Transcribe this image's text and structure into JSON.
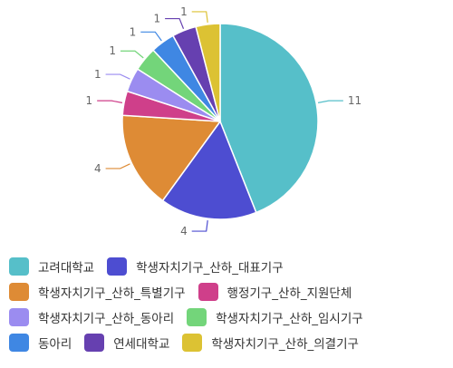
{
  "chart_data": {
    "type": "pie",
    "title": "",
    "categories": [
      "고려대학교",
      "학생자치기구_산하_대표기구",
      "학생자치기구_산하_특별기구",
      "행정기구_산하_지원단체",
      "학생자치기구_산하_동아리",
      "학생자치기구_산하_임시기구",
      "동아리",
      "연세대학교",
      "학생자치기구_산하_의결기구"
    ],
    "values": [
      11,
      4,
      4,
      1,
      1,
      1,
      1,
      1,
      1
    ],
    "colors": [
      "#56bfc9",
      "#4d4dd1",
      "#de8b35",
      "#cf3f8a",
      "#9b8cf0",
      "#73d57a",
      "#3f87e3",
      "#6640b0",
      "#dcc233"
    ],
    "legend_position": "bottom",
    "data_labels": true
  }
}
